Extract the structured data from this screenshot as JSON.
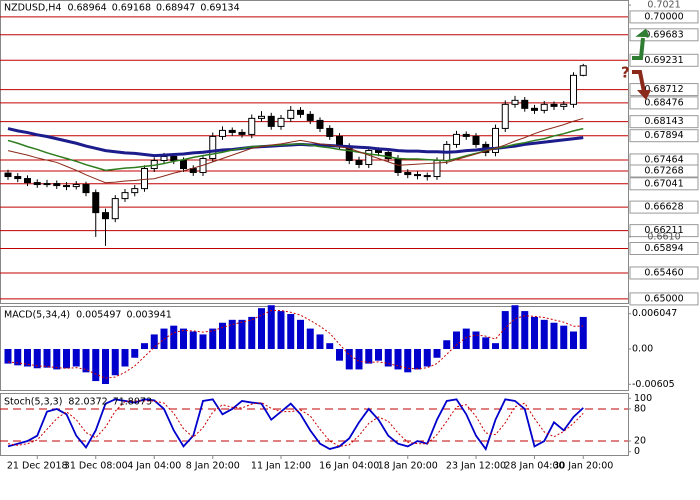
{
  "chart_data": [
    {
      "type": "candlestick",
      "title": "NZDUSD,H4",
      "header_values": [
        0.68964,
        0.69168,
        0.68947,
        0.69134
      ],
      "categories": [
        null,
        null,
        null,
        "21 Dec 2018",
        null,
        null,
        null,
        null,
        null,
        "31 Dec 08:00",
        null,
        null,
        null,
        null,
        null,
        "4 Jan 04:00",
        null,
        null,
        null,
        null,
        null,
        "8 Jan 20:00",
        null,
        null,
        null,
        null,
        null,
        null,
        "11 Jan 12:00",
        null,
        null,
        null,
        null,
        null,
        null,
        "16 Jan 04:00",
        null,
        null,
        null,
        null,
        null,
        "18 Jan 20:00",
        null,
        null,
        null,
        null,
        null,
        null,
        "23 Jan 12:00",
        null,
        null,
        null,
        null,
        null,
        "28 Jan 04:00",
        null,
        null,
        null,
        null,
        "30 Jan 20:00"
      ],
      "open": [
        0.6723,
        0.6717,
        0.67134,
        0.67063,
        0.67028,
        0.67045,
        0.6701,
        0.66992,
        0.67028,
        0.66885,
        0.6653,
        0.66423,
        0.66779,
        0.66885,
        0.66956,
        0.67312,
        0.67454,
        0.67525,
        0.67454,
        0.67312,
        0.67241,
        0.6749,
        0.67881,
        0.67988,
        0.67952,
        0.67917,
        0.68201,
        0.68237,
        0.68059,
        0.68201,
        0.68343,
        0.68272,
        0.68165,
        0.68023,
        0.67881,
        0.67703,
        0.67454,
        0.67383,
        0.67632,
        0.67597,
        0.6749,
        0.67241,
        0.67205,
        0.67187,
        0.6717,
        0.67454,
        0.67739,
        0.67917,
        0.67881,
        0.67739,
        0.67597,
        0.68023,
        0.6845,
        0.68521,
        0.68379,
        0.68343,
        0.6845,
        0.68414,
        0.6845,
        0.68964
      ],
      "high": [
        0.6729,
        0.6723,
        0.6719,
        0.6712,
        0.6711,
        0.671,
        0.6707,
        0.6709,
        0.6708,
        0.6694,
        0.666,
        0.6684,
        0.6695,
        0.6702,
        0.6737,
        0.6751,
        0.6759,
        0.6758,
        0.6751,
        0.6737,
        0.6755,
        0.6795,
        0.6806,
        0.6804,
        0.6801,
        0.6827,
        0.6833,
        0.683,
        0.6826,
        0.6842,
        0.684,
        0.6833,
        0.6822,
        0.6808,
        0.6794,
        0.6776,
        0.6752,
        0.677,
        0.6769,
        0.6765,
        0.6755,
        0.673,
        0.6726,
        0.6724,
        0.6751,
        0.678,
        0.6798,
        0.6797,
        0.6794,
        0.6779,
        0.6809,
        0.6852,
        0.686,
        0.6858,
        0.6844,
        0.6851,
        0.685,
        0.6851,
        0.6902,
        0.69168
      ],
      "low": [
        0.6711,
        0.6707,
        0.67,
        0.6697,
        0.6698,
        0.6695,
        0.6693,
        0.6694,
        0.6682,
        0.661,
        0.6594,
        0.6636,
        0.6672,
        0.6682,
        0.669,
        0.6725,
        0.6739,
        0.6739,
        0.6725,
        0.6718,
        0.6718,
        0.6743,
        0.6782,
        0.6789,
        0.6786,
        0.6785,
        0.6814,
        0.68,
        0.68,
        0.6814,
        0.6821,
        0.681,
        0.6796,
        0.6782,
        0.6764,
        0.6739,
        0.6732,
        0.6732,
        0.6753,
        0.6743,
        0.6718,
        0.6714,
        0.6712,
        0.671,
        0.6711,
        0.6739,
        0.6768,
        0.6782,
        0.6768,
        0.6753,
        0.6753,
        0.6796,
        0.6839,
        0.6832,
        0.6828,
        0.6829,
        0.6835,
        0.6835,
        0.6839,
        0.68947
      ],
      "close": [
        0.6717,
        0.67134,
        0.67063,
        0.67028,
        0.67045,
        0.6701,
        0.66992,
        0.67028,
        0.66885,
        0.6653,
        0.66423,
        0.66779,
        0.66885,
        0.66956,
        0.67312,
        0.67454,
        0.67525,
        0.67454,
        0.67312,
        0.67241,
        0.6749,
        0.67881,
        0.67988,
        0.67952,
        0.67917,
        0.68201,
        0.68237,
        0.68059,
        0.68201,
        0.68343,
        0.68272,
        0.68165,
        0.68023,
        0.67881,
        0.67703,
        0.67454,
        0.67383,
        0.67632,
        0.67597,
        0.6749,
        0.67241,
        0.67205,
        0.67187,
        0.6717,
        0.67454,
        0.67739,
        0.67917,
        0.67881,
        0.67739,
        0.67597,
        0.68023,
        0.6845,
        0.68521,
        0.68379,
        0.68343,
        0.6845,
        0.68414,
        0.6845,
        0.68964,
        0.69134
      ],
      "bull_color": "#ffffff",
      "bear_color": "#000000",
      "series": [
        {
          "color": "#1c1c8c",
          "width": 3,
          "values": [
            0.6802,
            0.6798,
            0.6795,
            0.6791,
            0.6788,
            0.6784,
            0.678,
            0.6776,
            0.6771,
            0.6767,
            0.6763,
            0.6761,
            0.6759,
            0.6758,
            0.6756,
            0.6754,
            0.6755,
            0.6756,
            0.6757,
            0.6759,
            0.676,
            0.6762,
            0.6764,
            0.6765,
            0.6767,
            0.6769,
            0.677,
            0.6771,
            0.6772,
            0.6773,
            0.6774,
            0.6773,
            0.6773,
            0.6772,
            0.6771,
            0.677,
            0.6769,
            0.6768,
            0.6766,
            0.6765,
            0.6763,
            0.6762,
            0.6762,
            0.6761,
            0.6761,
            0.676,
            0.6761,
            0.6763,
            0.6764,
            0.6766,
            0.6767,
            0.6769,
            0.6771,
            0.6774,
            0.6776,
            0.6778,
            0.678,
            0.6782,
            0.6784,
            0.6786
          ]
        },
        {
          "color": "#2e7d1e",
          "width": 1.5,
          "values": [
            0.6781,
            0.6776,
            0.677,
            0.6765,
            0.6759,
            0.6754,
            0.6749,
            0.6744,
            0.6738,
            0.6733,
            0.6728,
            0.673,
            0.6732,
            0.6733,
            0.6735,
            0.6737,
            0.674,
            0.6744,
            0.6747,
            0.6751,
            0.6754,
            0.6757,
            0.676,
            0.6764,
            0.6767,
            0.677,
            0.6771,
            0.6772,
            0.6773,
            0.6774,
            0.6775,
            0.6773,
            0.677,
            0.6768,
            0.6765,
            0.6763,
            0.676,
            0.6757,
            0.6755,
            0.6752,
            0.6749,
            0.6748,
            0.6748,
            0.6747,
            0.6746,
            0.6745,
            0.6749,
            0.6754,
            0.6758,
            0.6763,
            0.6767,
            0.677,
            0.6774,
            0.6777,
            0.6781,
            0.6784,
            0.6789,
            0.6793,
            0.6798,
            0.6802
          ]
        },
        {
          "color": "#8b2a1a",
          "width": 1,
          "values": [
            0.6763,
            0.6759,
            0.6755,
            0.675,
            0.6746,
            0.6742,
            0.6735,
            0.6728,
            0.672,
            0.6713,
            0.6706,
            0.6707,
            0.6709,
            0.671,
            0.6712,
            0.6713,
            0.6718,
            0.6723,
            0.6727,
            0.6732,
            0.6737,
            0.6743,
            0.6749,
            0.6755,
            0.6761,
            0.6767,
            0.677,
            0.6773,
            0.6775,
            0.6778,
            0.6781,
            0.6778,
            0.6775,
            0.6773,
            0.677,
            0.6767,
            0.6761,
            0.6755,
            0.6749,
            0.6743,
            0.6737,
            0.6738,
            0.6739,
            0.674,
            0.6741,
            0.6742,
            0.6747,
            0.6752,
            0.6757,
            0.6762,
            0.6767,
            0.6773,
            0.678,
            0.6786,
            0.6793,
            0.6799,
            0.6804,
            0.6809,
            0.6815,
            0.682
          ]
        }
      ],
      "ylim": [
        0.6491,
        0.703
      ],
      "yticks": [
        0.7021,
        {
          "value": 0.661,
          "label": "0.6610"
        }
      ],
      "levels": [
        {
          "value": 0.7,
          "label": "0.70000"
        },
        0.69683,
        0.69231,
        0.68712,
        0.68476,
        0.68143,
        0.67894,
        0.67464,
        0.67268,
        0.67041,
        0.66628,
        0.66211,
        0.65894,
        {
          "value": 0.6546,
          "label": "0.65460"
        },
        {
          "value": 0.65,
          "label": "0.65000"
        }
      ],
      "level_color": "#c00000",
      "annotation": "?"
    },
    {
      "type": "macd",
      "title": "MACD(5,34,4)",
      "header_values": [
        0.005497,
        0.003941
      ],
      "values": [
        -0.0025,
        -0.0028,
        -0.003,
        -0.0033,
        -0.0032,
        -0.0035,
        -0.0033,
        -0.003,
        -0.004,
        -0.0055,
        -0.006,
        -0.0045,
        -0.003,
        -0.0015,
        0.001,
        0.0025,
        0.0035,
        0.004,
        0.0035,
        0.003,
        0.0025,
        0.0035,
        0.0045,
        0.005,
        0.005,
        0.0055,
        0.007,
        0.0075,
        0.0065,
        0.006,
        0.005,
        0.0035,
        0.0025,
        0.001,
        -0.002,
        -0.0035,
        -0.0035,
        -0.0025,
        -0.002,
        -0.003,
        -0.0035,
        -0.004,
        -0.0035,
        -0.003,
        -0.0015,
        0.0015,
        0.003,
        0.0035,
        0.003,
        0.002,
        0.001,
        0.0065,
        0.0075,
        0.0065,
        0.0055,
        0.005,
        0.0045,
        0.004,
        0.003,
        0.005497
      ],
      "signal": [
        -0.0022,
        -0.0024,
        -0.0026,
        -0.0029,
        -0.003,
        -0.0032,
        -0.0033,
        -0.0032,
        -0.0035,
        -0.0043,
        -0.005,
        -0.0048,
        -0.004,
        -0.0029,
        -0.0013,
        0.0003,
        0.0017,
        0.0028,
        0.0032,
        0.0031,
        0.0029,
        0.0031,
        0.0037,
        0.0042,
        0.0046,
        0.005,
        0.0058,
        0.0066,
        0.0066,
        0.0063,
        0.0058,
        0.0049,
        0.0039,
        0.0027,
        0.0008,
        -0.001,
        -0.0021,
        -0.0023,
        -0.0022,
        -0.0025,
        -0.0029,
        -0.0033,
        -0.0034,
        -0.0032,
        -0.0025,
        -0.0009,
        0.0007,
        0.002,
        0.0024,
        0.0022,
        0.0017,
        0.0036,
        0.0052,
        0.0057,
        0.0056,
        0.0054,
        0.005,
        0.0046,
        0.0039,
        0.003941
      ],
      "color": "#0000cc",
      "signal_color": "#cc0000",
      "ylim": [
        -0.0072,
        0.0072
      ],
      "yticks": [
        0.006047,
        {
          "value": 0,
          "label": "0.00"
        },
        -0.00605
      ]
    },
    {
      "type": "stoch",
      "title": "Stoch(5,3,3)",
      "header_values": [
        82.0372,
        71.8073
      ],
      "series": [
        {
          "color": "#0000cc",
          "values": [
            10,
            15,
            20,
            30,
            75,
            80,
            70,
            30,
            8,
            40,
            90,
            98,
            95,
            92,
            98,
            96,
            80,
            40,
            10,
            30,
            95,
            98,
            70,
            80,
            95,
            92,
            90,
            60,
            75,
            90,
            70,
            40,
            15,
            5,
            10,
            25,
            55,
            80,
            60,
            30,
            15,
            10,
            20,
            15,
            60,
            95,
            98,
            70,
            30,
            5,
            60,
            98,
            95,
            80,
            10,
            20,
            55,
            40,
            65,
            82.0372
          ]
        },
        {
          "color": "#cc0000",
          "dashed": true,
          "values": [
            15,
            12,
            15,
            22,
            42,
            62,
            75,
            60,
            36,
            26,
            46,
            76,
            94,
            95,
            95,
            95,
            91,
            72,
            43,
            27,
            45,
            74,
            88,
            83,
            82,
            89,
            92,
            81,
            75,
            75,
            78,
            67,
            42,
            20,
            10,
            13,
            30,
            53,
            65,
            57,
            35,
            18,
            15,
            15,
            32,
            57,
            84,
            88,
            66,
            35,
            32,
            54,
            84,
            91,
            62,
            37,
            28,
            38,
            53,
            71.8073
          ]
        }
      ],
      "ylim": [
        -8,
        108
      ],
      "yticks": [
        100,
        80,
        20,
        0
      ],
      "levels": [
        80,
        20
      ],
      "level_color": "#c00000"
    }
  ]
}
